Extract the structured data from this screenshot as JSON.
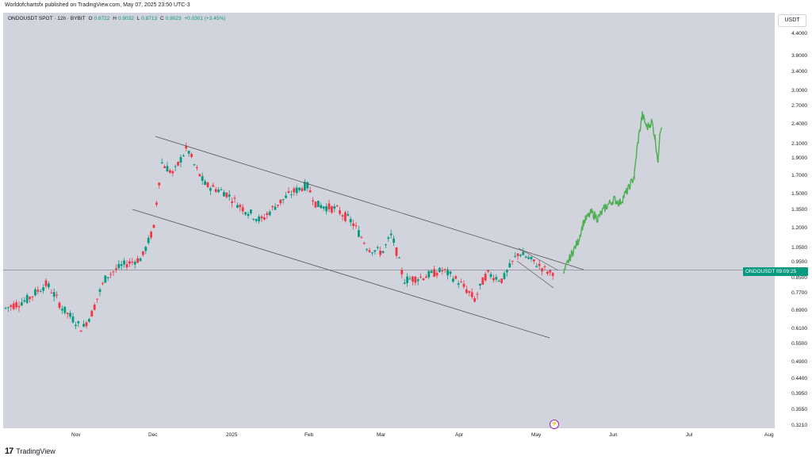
{
  "publisher": "Worldofchartsfx published on TradingView.com, May 07, 2025 23:50 UTC-3",
  "legend": {
    "symbol": "ONDOUSDT SPOT · 12h · BYBIT",
    "o_label": "O",
    "o_value": "0.8722",
    "h_label": "H",
    "h_value": "0.9032",
    "l_label": "L",
    "l_value": "0.8713",
    "c_label": "C",
    "c_value": "0.9023",
    "change": "+0.0301 (+3.45%)"
  },
  "currency_button": "USDT",
  "price_ticks": [
    "4.4000",
    "3.8000",
    "3.4000",
    "3.0000",
    "2.7000",
    "2.4000",
    "2.1000",
    "1.9000",
    "1.7000",
    "1.5000",
    "1.3500",
    "1.2000",
    "1.0500",
    "0.9500",
    "0.8500",
    "0.7700",
    "0.6900",
    "0.6100",
    "0.5500",
    "0.4900",
    "0.4400",
    "0.3950",
    "0.3550",
    "0.3210"
  ],
  "time_ticks": [
    "Nov",
    "Dec",
    "2025",
    "Feb",
    "Mar",
    "Apr",
    "May",
    "Jun",
    "Jul",
    "Aug"
  ],
  "last_price_tag": {
    "symbol": "ONDOUSDT",
    "countdown": "09:09:25"
  },
  "footer_brand": "TradingView",
  "footer_logo": "17",
  "flash_icon": "⚡",
  "colors": {
    "up": "#089981",
    "down": "#f23645",
    "projection": "#4caf50",
    "background": "#d1d4dc"
  },
  "chart_data": {
    "type": "candlestick",
    "symbol": "ONDOUSDT",
    "exchange": "BYBIT",
    "interval": "12h",
    "scale": "log",
    "ylim": [
      0.3,
      4.6
    ],
    "last_price": 0.9023,
    "key_levels": {
      "early_oct_low": 0.68,
      "nov_low": 0.59,
      "dec_high": 2.14,
      "jan_high": 1.6,
      "mar_low": 0.76,
      "apr_low": 0.68,
      "late_apr_high": 1.05,
      "projection_target": 2.6
    },
    "annotations": [
      "descending channel (upper trendline)",
      "descending channel (lower trendline)",
      "falling wedge breakout",
      "projected path (green)"
    ]
  }
}
